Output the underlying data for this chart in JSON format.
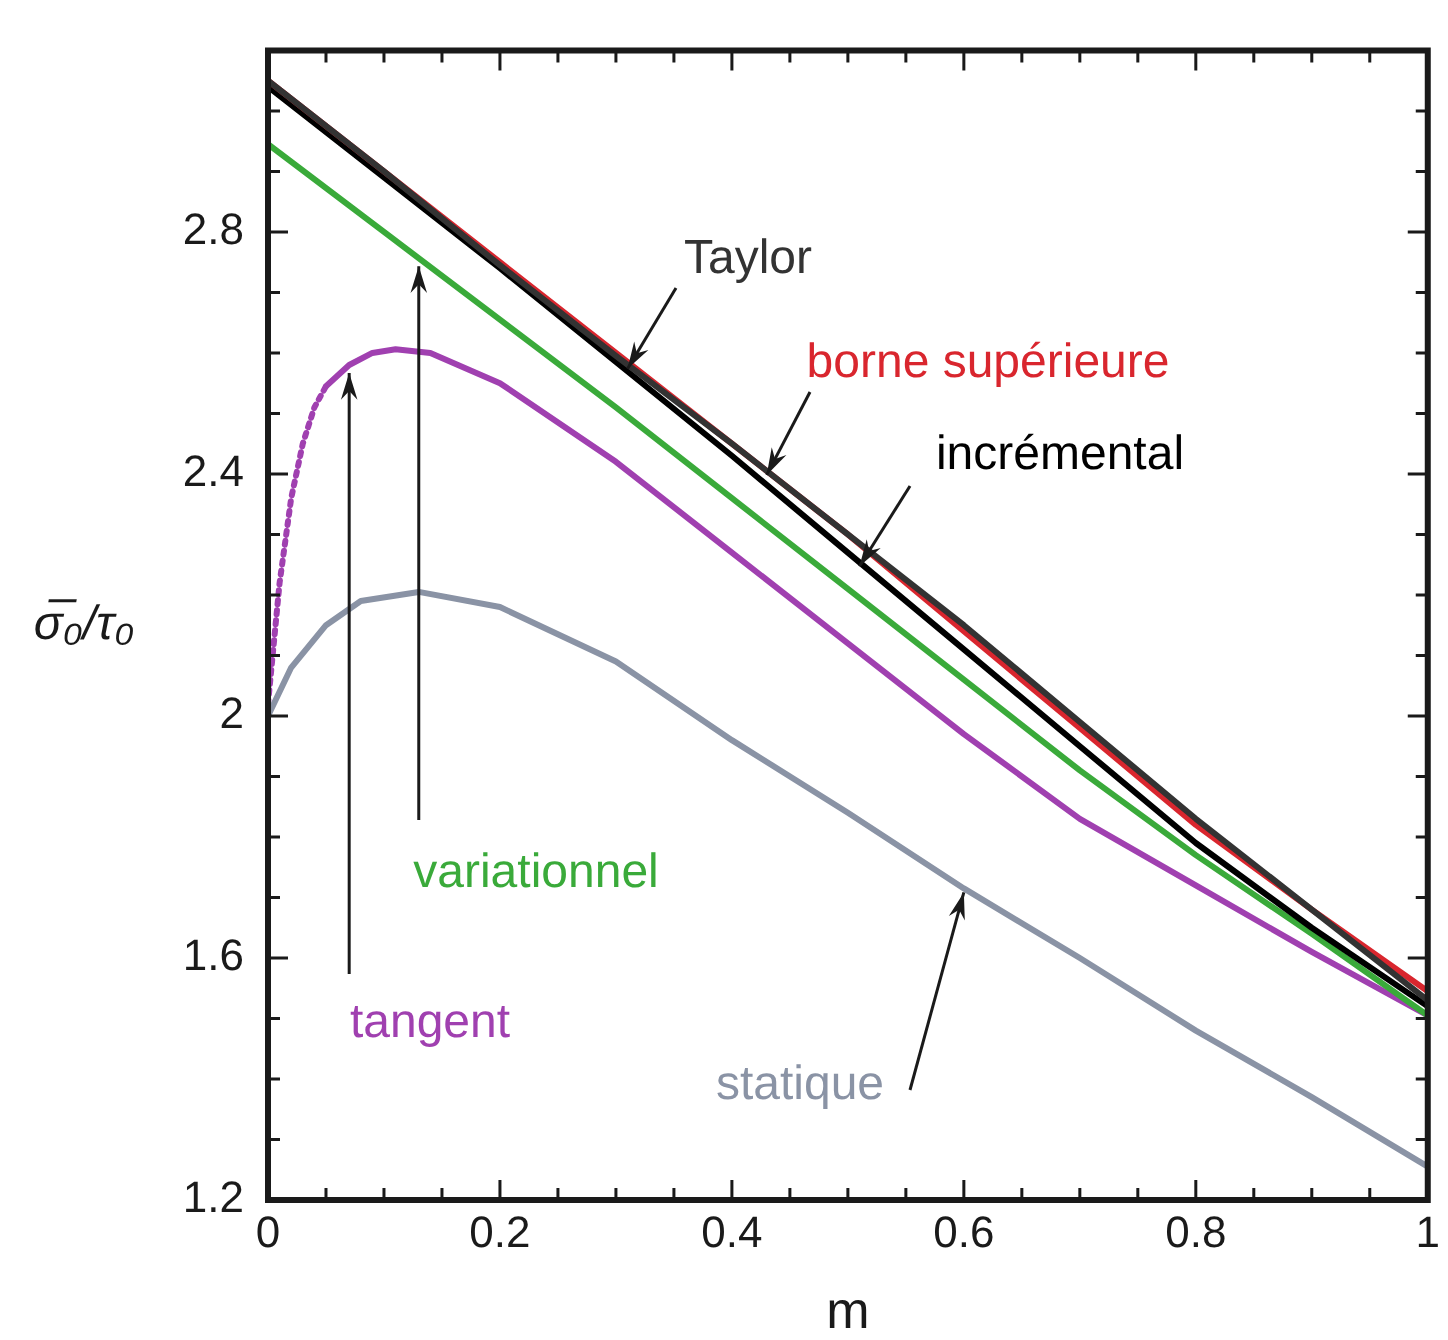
{
  "chart_data": {
    "type": "line",
    "xlabel": "m",
    "ylabel": "σ̅₀/τ₀",
    "xlim": [
      0,
      1
    ],
    "ylim": [
      1.2,
      3.1
    ],
    "xticks": [
      0,
      {
        "value": 0.05,
        "label": null
      },
      {
        "value": 0.1,
        "label": null
      },
      {
        "value": 0.15,
        "label": null
      },
      0.2,
      {
        "value": 0.25,
        "label": null
      },
      {
        "value": 0.3,
        "label": null
      },
      {
        "value": 0.35,
        "label": null
      },
      0.4,
      {
        "value": 0.45,
        "label": null
      },
      {
        "value": 0.5,
        "label": null
      },
      {
        "value": 0.55,
        "label": null
      },
      0.6,
      {
        "value": 0.65,
        "label": null
      },
      {
        "value": 0.7,
        "label": null
      },
      {
        "value": 0.75,
        "label": null
      },
      0.8,
      {
        "value": 0.85,
        "label": null
      },
      {
        "value": 0.9,
        "label": null
      },
      {
        "value": 0.95,
        "label": null
      },
      1
    ],
    "yticks": [
      1.2,
      {
        "value": 1.3,
        "label": null
      },
      {
        "value": 1.4,
        "label": null
      },
      {
        "value": 1.5,
        "label": null
      },
      1.6,
      {
        "value": 1.7,
        "label": null
      },
      {
        "value": 1.8,
        "label": null
      },
      {
        "value": 1.9,
        "label": null
      },
      2,
      {
        "value": 2.1,
        "label": null
      },
      {
        "value": 2.2,
        "label": null
      },
      {
        "value": 2.3,
        "label": null
      },
      2.4,
      {
        "value": 2.5,
        "label": null
      },
      {
        "value": 2.6,
        "label": null
      },
      {
        "value": 2.7,
        "label": null
      },
      2.8,
      {
        "value": 2.9,
        "label": null
      },
      {
        "value": 3.0,
        "label": null
      }
    ],
    "grid": false,
    "legend": false,
    "marker": "none",
    "line_style": "solid",
    "x": [
      0,
      0.1,
      0.2,
      0.3,
      0.4,
      0.5,
      0.6,
      0.7,
      0.8,
      0.9,
      1
    ],
    "series": [
      {
        "name": "Taylor",
        "color": "#333333",
        "values": [
          3.05,
          2.9,
          2.745,
          2.595,
          2.45,
          2.3,
          2.15,
          1.99,
          1.83,
          1.68,
          1.53
        ]
      },
      {
        "name": "borne supérieure",
        "color": "#d9262e",
        "values": [
          3.05,
          2.9,
          2.75,
          2.6,
          2.45,
          2.3,
          2.14,
          1.98,
          1.82,
          1.68,
          1.545
        ]
      },
      {
        "name": "incrémental",
        "color": "#000000",
        "values": [
          3.04,
          2.89,
          2.74,
          2.585,
          2.43,
          2.27,
          2.11,
          1.95,
          1.79,
          1.65,
          1.52
        ]
      },
      {
        "name": "variationnel",
        "color": "#3aaa3a",
        "values": [
          2.945,
          2.8,
          2.655,
          2.51,
          2.36,
          2.21,
          2.06,
          1.91,
          1.77,
          1.64,
          1.505
        ]
      },
      {
        "name": "tangent",
        "color": "#a040b0",
        "x": [
          0.05,
          0.07,
          0.09,
          0.11,
          0.14,
          0.2,
          0.3,
          0.4,
          0.5,
          0.6,
          0.7,
          0.8,
          0.9,
          1
        ],
        "values": [
          2.545,
          2.58,
          2.6,
          2.606,
          2.6,
          2.55,
          2.42,
          2.27,
          2.12,
          1.97,
          1.83,
          1.72,
          1.61,
          1.505
        ]
      },
      {
        "name": "statique",
        "color": "#8a93a5",
        "x": [
          0,
          0.02,
          0.05,
          0.08,
          0.13,
          0.2,
          0.3,
          0.4,
          0.5,
          0.6,
          0.7,
          0.8,
          0.9,
          1
        ],
        "values": [
          2.0,
          2.08,
          2.15,
          2.19,
          2.205,
          2.18,
          2.09,
          1.96,
          1.84,
          1.715,
          1.6,
          1.48,
          1.37,
          1.255
        ]
      },
      {
        "color": "#a040b0",
        "line_style": "dotted",
        "x": [
          0,
          0.01,
          0.02,
          0.03,
          0.04,
          0.05
        ],
        "values": [
          2.02,
          2.22,
          2.36,
          2.45,
          2.51,
          2.545
        ]
      }
    ]
  }
}
